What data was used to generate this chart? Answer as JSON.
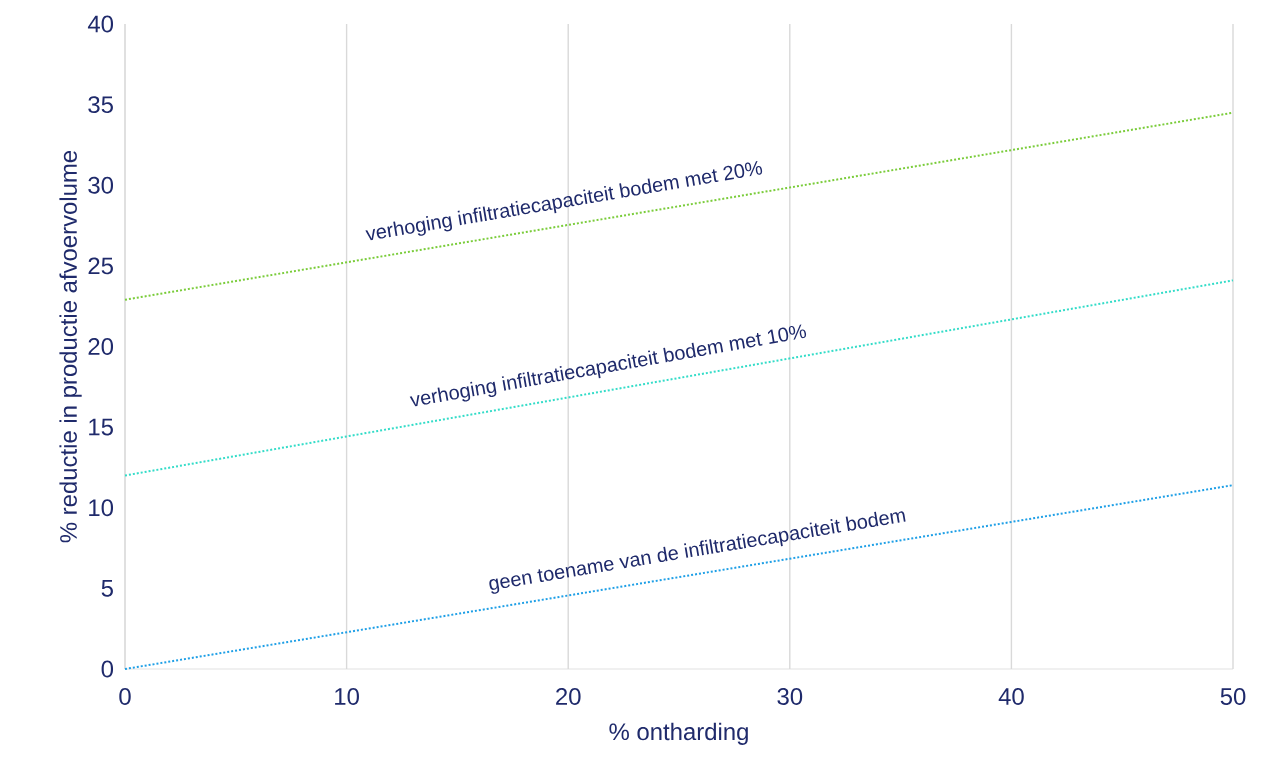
{
  "chart_data": {
    "type": "line",
    "xlabel": "% ontharding",
    "ylabel": "% reductie in productie afvoervolume",
    "x": [
      0,
      50
    ],
    "series": [
      {
        "name": "geen toename van de infiltratiecapaciteit bodem",
        "color": "#1e9fe6",
        "values": [
          0,
          11.4
        ]
      },
      {
        "name": "verhoging  infiltratiecapaciteit bodem met 10%",
        "color": "#33dcc8",
        "values": [
          12.0,
          24.1
        ]
      },
      {
        "name": "verhoging  infiltratiecapaciteit bodem met 20%",
        "color": "#7acc3a",
        "values": [
          22.9,
          34.5
        ]
      }
    ],
    "xlim": [
      0,
      50
    ],
    "ylim": [
      0,
      40
    ],
    "xticks": [
      0,
      10,
      20,
      30,
      40,
      50
    ],
    "yticks": [
      0,
      5,
      10,
      15,
      20,
      25,
      30,
      35,
      40
    ],
    "grid": "x",
    "marker": "none",
    "line_style": "dotted"
  }
}
